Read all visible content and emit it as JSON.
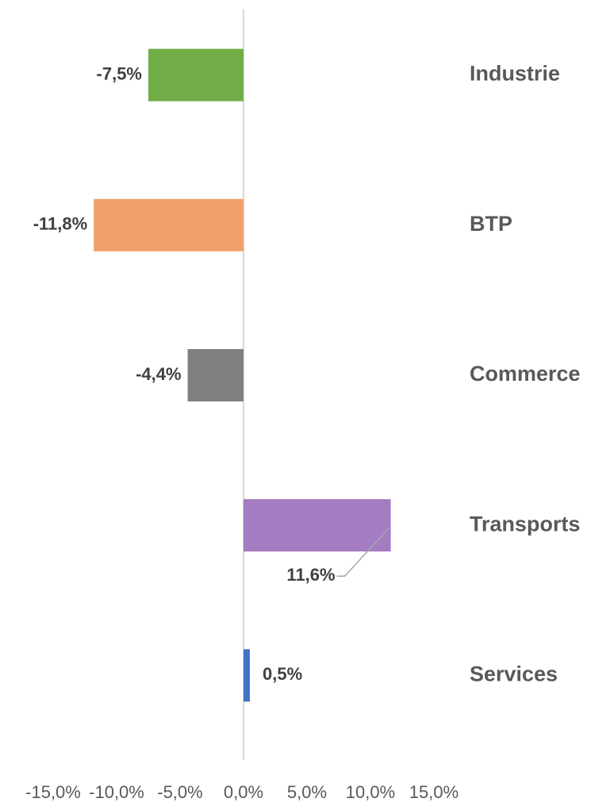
{
  "chart_data": {
    "type": "bar",
    "orientation": "horizontal",
    "categories": [
      "Industrie",
      "BTP",
      "Commerce",
      "Transports",
      "Services"
    ],
    "values": [
      -7.5,
      -11.8,
      -4.4,
      11.6,
      0.5
    ],
    "value_labels": [
      "-7,5%",
      "-11,8%",
      "-4,4%",
      "11,6%",
      "0,5%"
    ],
    "colors": [
      "#70ad47",
      "#f1a06b",
      "#7f7f7f",
      "#a37cc2",
      "#4472c4"
    ],
    "xlim": [
      -15,
      15
    ],
    "xticks": [
      {
        "value": -15,
        "label": "-15,0%"
      },
      {
        "value": -10,
        "label": "-10,0%"
      },
      {
        "value": -5,
        "label": "-5,0%"
      },
      {
        "value": 0,
        "label": "0,0%"
      },
      {
        "value": 5,
        "label": "5,0%"
      },
      {
        "value": 10,
        "label": "10,0%"
      },
      {
        "value": 15,
        "label": "15,0%"
      }
    ]
  }
}
